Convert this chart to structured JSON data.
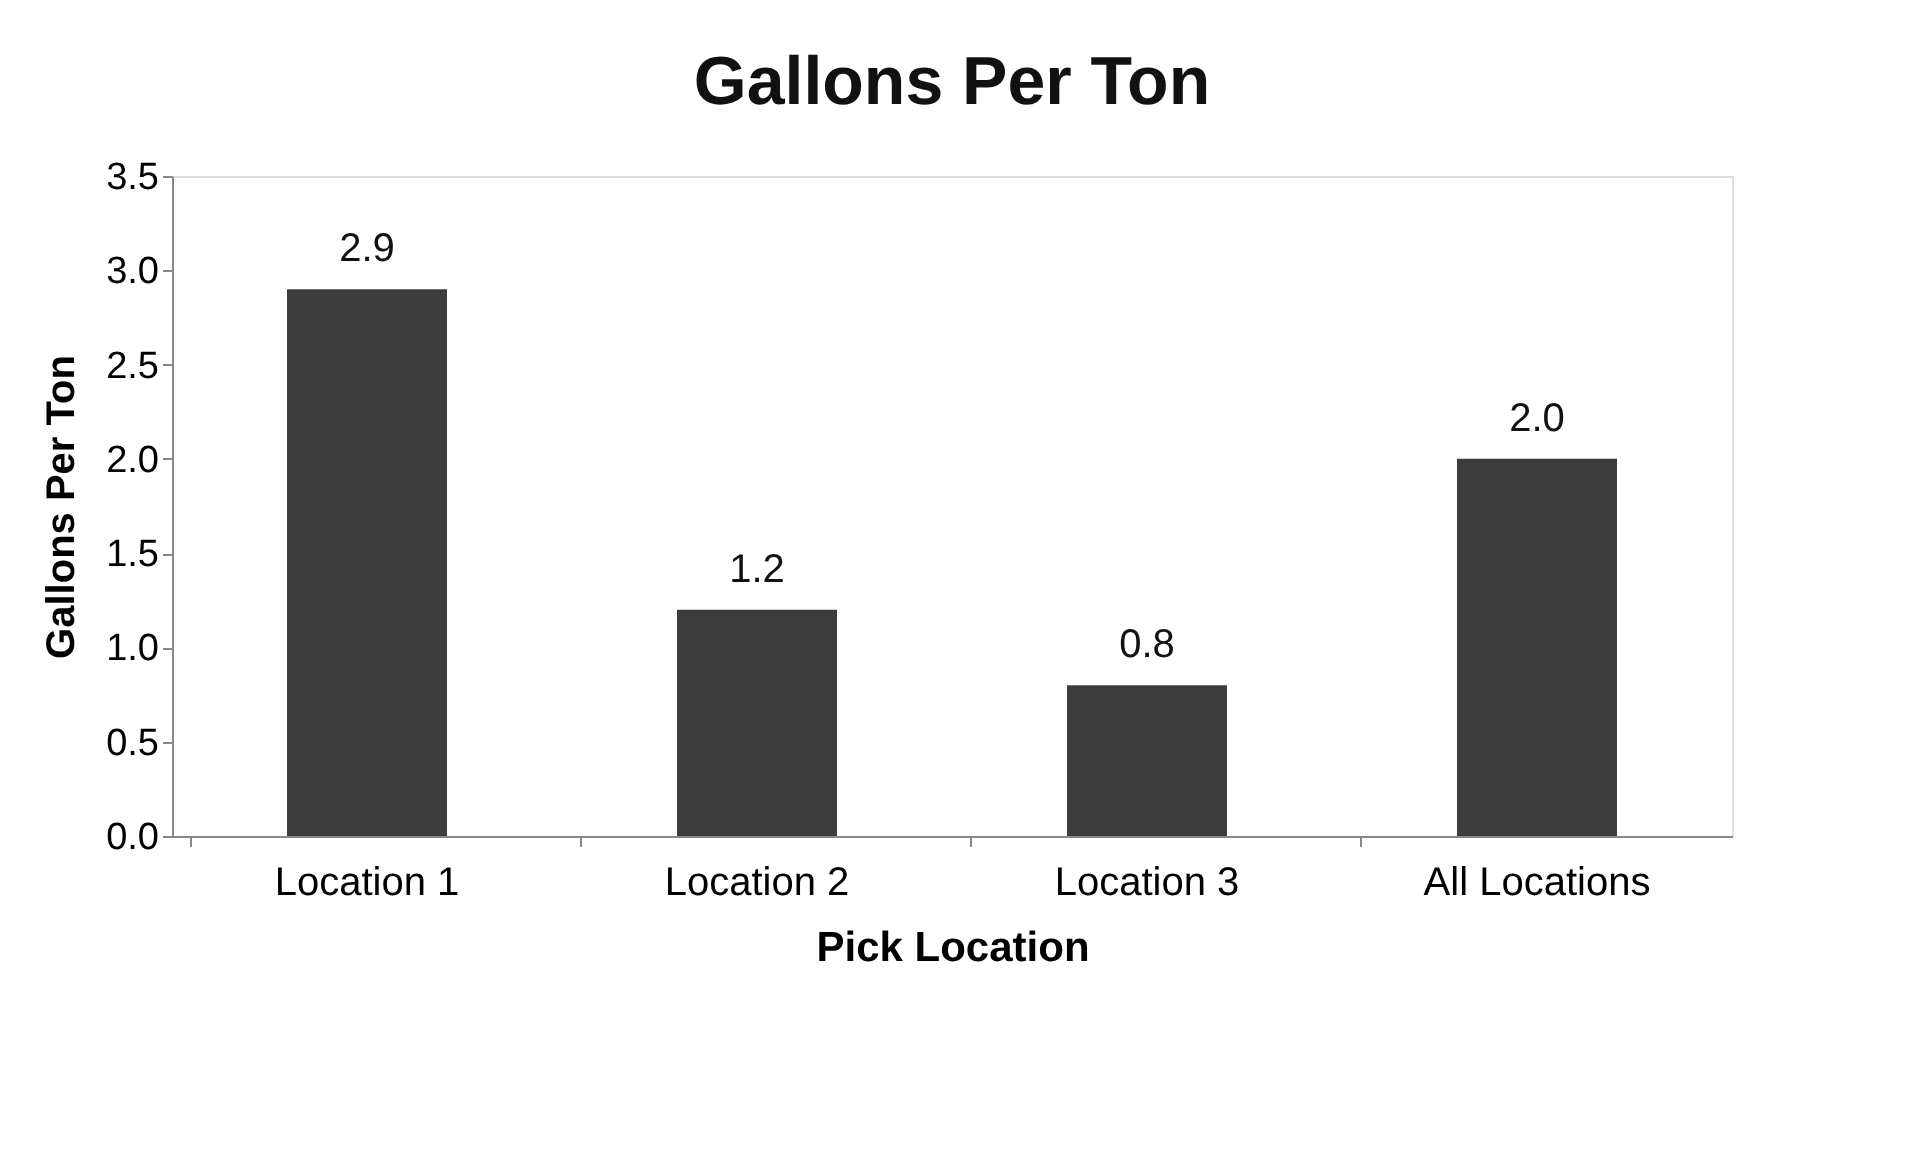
{
  "chart_data": {
    "type": "bar",
    "title": "Gallons Per Ton",
    "xlabel": "Pick Location",
    "ylabel": "Gallons Per Ton",
    "categories": [
      "Location 1",
      "Location 2",
      "Location 3",
      "All Locations"
    ],
    "values": [
      2.9,
      1.2,
      0.8,
      2.0
    ],
    "value_labels": [
      "2.9",
      "1.2",
      "0.8",
      "2.0"
    ],
    "color": "#3c3c3c",
    "ylim": [
      0,
      3.5
    ],
    "yticks": [
      {
        "value": 0,
        "label": "0.0"
      },
      0.5,
      {
        "value": 1,
        "label": "1.0"
      },
      1.5,
      {
        "value": 2,
        "label": "2.0"
      },
      2.5,
      {
        "value": 3,
        "label": "3.0"
      },
      3.5
    ],
    "grid": false
  }
}
